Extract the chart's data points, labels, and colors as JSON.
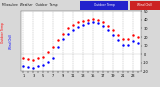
{
  "title_left": "Milwaukee Weather",
  "title_temp": "Outdoor Temp",
  "title_wc": "Wind Chill",
  "bg_color": "#d8d8d8",
  "plot_bg": "#ffffff",
  "temp_color": "#ff0000",
  "wc_color": "#0000ff",
  "hours": [
    1,
    2,
    3,
    4,
    5,
    6,
    7,
    8,
    9,
    10,
    11,
    12,
    13,
    14,
    15,
    16,
    17,
    18,
    19,
    20,
    21,
    22,
    23,
    24
  ],
  "temp": [
    -5,
    -6,
    -7,
    -5,
    -3,
    2,
    8,
    16,
    24,
    30,
    34,
    37,
    39,
    40,
    41,
    40,
    37,
    33,
    28,
    22,
    18,
    18,
    22,
    20
  ],
  "wc": [
    -14,
    -15,
    -16,
    -14,
    -13,
    -9,
    -5,
    8,
    18,
    24,
    28,
    32,
    34,
    36,
    37,
    36,
    33,
    28,
    22,
    16,
    11,
    11,
    15,
    13
  ],
  "ylim": [
    -20,
    50
  ],
  "yticks": [
    -20,
    -10,
    0,
    10,
    20,
    30,
    40,
    50
  ],
  "ytick_labels": [
    "-20",
    "-10",
    "0",
    "10",
    "20",
    "30",
    "40",
    "50"
  ],
  "grid_positions": [
    1,
    3,
    5,
    7,
    9,
    11,
    13,
    15,
    17,
    19,
    21,
    23
  ],
  "grid_color": "#aaaaaa",
  "legend_temp": "Outdoor Temp",
  "legend_wc": "Wind Chill",
  "title_bar_blue": "#2222cc",
  "title_bar_red": "#cc2222",
  "title_fontsize": 3.0,
  "tick_fontsize": 2.5,
  "marker_size": 1.5,
  "xtick_labels": [
    "1",
    "",
    "3",
    "",
    "5",
    "",
    "7",
    "",
    "9",
    "",
    "11",
    "",
    "13",
    "",
    "15",
    "",
    "17",
    "",
    "19",
    "",
    "21",
    "",
    "23",
    ""
  ]
}
